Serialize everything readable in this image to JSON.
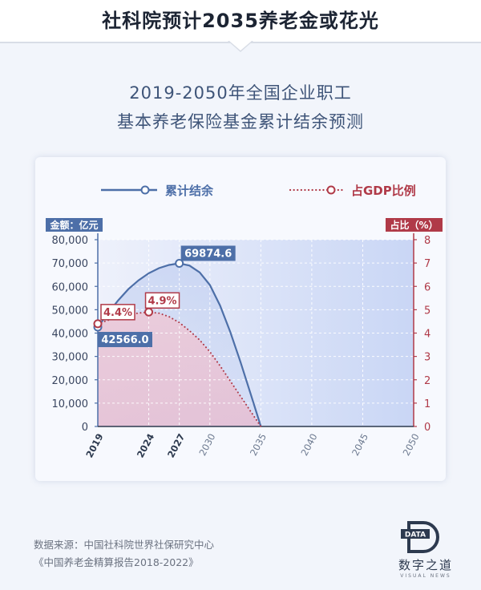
{
  "header": {
    "title": "社科院预计2035养老金或花光"
  },
  "subtitle": {
    "line1": "2019-2050年全国企业职工",
    "line2": "基本养老保险基金累计结余预测"
  },
  "colors": {
    "blue": "#4d6fa8",
    "red": "#b03a48"
  },
  "chart_data": {
    "type": "line",
    "x_ticks": [
      2019,
      2024,
      2027,
      2030,
      2035,
      2040,
      2045,
      2050
    ],
    "x_ticks_bold": [
      2019,
      2024,
      2027
    ],
    "xlim": [
      2019,
      2050
    ],
    "y_left": {
      "label": "金额：亿元",
      "lim": [
        0,
        80000
      ],
      "ticks": [
        "0",
        "10,000",
        "20,000",
        "30,000",
        "40,000",
        "50,000",
        "60,000",
        "70,000",
        "80,000"
      ]
    },
    "y_right": {
      "label": "占比（%）",
      "lim": [
        0,
        8
      ],
      "ticks": [
        "0",
        "1",
        "2",
        "3",
        "4",
        "5",
        "6",
        "7",
        "8"
      ]
    },
    "legend": {
      "placement": "top"
    },
    "series": [
      {
        "name": "累计结余",
        "axis": "left",
        "style": "solid",
        "points": [
          [
            2019,
            42566
          ],
          [
            2020,
            48500
          ],
          [
            2021,
            54000
          ],
          [
            2022,
            58800
          ],
          [
            2023,
            62600
          ],
          [
            2024,
            65600
          ],
          [
            2025,
            67800
          ],
          [
            2026,
            69200
          ],
          [
            2027,
            69874.6
          ],
          [
            2028,
            68900
          ],
          [
            2029,
            66000
          ],
          [
            2030,
            60600
          ],
          [
            2031,
            51800
          ],
          [
            2032,
            40500
          ],
          [
            2033,
            27700
          ],
          [
            2034,
            14000
          ],
          [
            2035,
            0
          ]
        ],
        "labels": [
          {
            "x": 2019,
            "text": "42566.0"
          },
          {
            "x": 2027,
            "text": "69874.6"
          }
        ]
      },
      {
        "name": "占GDP比例",
        "axis": "right",
        "style": "dotted",
        "points": [
          [
            2019,
            4.4
          ],
          [
            2020,
            4.55
          ],
          [
            2021,
            4.68
          ],
          [
            2022,
            4.78
          ],
          [
            2023,
            4.86
          ],
          [
            2024,
            4.9
          ],
          [
            2025,
            4.85
          ],
          [
            2026,
            4.7
          ],
          [
            2027,
            4.45
          ],
          [
            2028,
            4.1
          ],
          [
            2029,
            3.7
          ],
          [
            2030,
            3.2
          ],
          [
            2031,
            2.6
          ],
          [
            2032,
            1.95
          ],
          [
            2033,
            1.3
          ],
          [
            2034,
            0.65
          ],
          [
            2035,
            0
          ]
        ],
        "labels": [
          {
            "x": 2019,
            "text": "4.4%"
          },
          {
            "x": 2024,
            "text": "4.9%"
          }
        ]
      }
    ]
  },
  "footer": {
    "source_line1": "数据来源：中国社科院世界社保研究中心",
    "source_line2": "《中国养老金精算报告2018-2022》"
  },
  "logo": {
    "badge": "DATA",
    "name": "数字之道",
    "sub": "VISUAL NEWS"
  }
}
